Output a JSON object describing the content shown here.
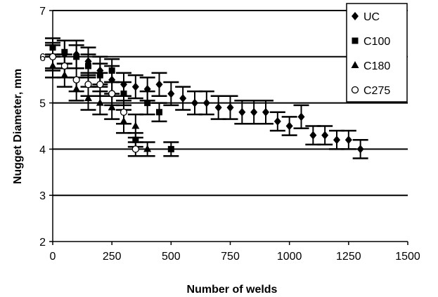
{
  "chart_data": {
    "type": "scatter",
    "xlabel": "Number of welds",
    "ylabel": "Nugget Diameter, mm",
    "xlim": [
      0,
      1500
    ],
    "ylim": [
      2,
      7
    ],
    "xticks": [
      "0",
      "250",
      "500",
      "750",
      "1000",
      "1250",
      "1500"
    ],
    "yticks": [
      "2",
      "3",
      "4",
      "5",
      "6",
      "7"
    ],
    "grid": "horizontal",
    "legend": "top-right",
    "error_bars": true,
    "series": [
      {
        "name": "UC",
        "marker": "diamond",
        "x": [
          0,
          50,
          100,
          150,
          200,
          250,
          300,
          350,
          400,
          450,
          500,
          550,
          600,
          650,
          700,
          750,
          800,
          850,
          900,
          950,
          1000,
          1050,
          1100,
          1150,
          1200,
          1250,
          1300
        ],
        "y": [
          6.0,
          6.05,
          6.05,
          5.9,
          5.7,
          5.5,
          5.4,
          5.35,
          5.3,
          5.4,
          5.2,
          5.1,
          5.0,
          5.0,
          4.9,
          4.9,
          4.8,
          4.8,
          4.8,
          4.6,
          4.5,
          4.7,
          4.3,
          4.3,
          4.2,
          4.2,
          4.0
        ],
        "err": [
          0.3,
          0.3,
          0.3,
          0.3,
          0.3,
          0.3,
          0.25,
          0.25,
          0.25,
          0.25,
          0.25,
          0.25,
          0.25,
          0.25,
          0.25,
          0.25,
          0.25,
          0.25,
          0.25,
          0.2,
          0.2,
          0.25,
          0.2,
          0.2,
          0.2,
          0.2,
          0.2
        ]
      },
      {
        "name": "C100",
        "marker": "square",
        "x": [
          0,
          50,
          100,
          150,
          200,
          250,
          300,
          350,
          400,
          450,
          500
        ],
        "y": [
          6.2,
          6.1,
          6.0,
          5.8,
          5.6,
          5.7,
          5.2,
          4.2,
          5.0,
          4.8,
          4.0
        ],
        "err": [
          0.2,
          0.25,
          0.25,
          0.25,
          0.25,
          0.25,
          0.25,
          0.15,
          0.25,
          0.2,
          0.15
        ]
      },
      {
        "name": "C180",
        "marker": "triangle",
        "x": [
          0,
          50,
          100,
          150,
          200,
          250,
          300,
          350,
          400
        ],
        "y": [
          5.8,
          5.6,
          5.3,
          5.1,
          5.0,
          4.9,
          4.6,
          4.5,
          4.0
        ],
        "err": [
          0.25,
          0.25,
          0.25,
          0.25,
          0.25,
          0.25,
          0.25,
          0.25,
          0.15
        ]
      },
      {
        "name": "C275",
        "marker": "circle",
        "x": [
          0,
          50,
          100,
          150,
          200,
          250,
          300,
          350
        ],
        "y": [
          6.0,
          5.8,
          5.5,
          5.4,
          5.4,
          5.2,
          4.8,
          4.0
        ],
        "err": [
          0.25,
          0.25,
          0.25,
          0.25,
          0.25,
          0.25,
          0.25,
          0.15
        ]
      }
    ]
  }
}
